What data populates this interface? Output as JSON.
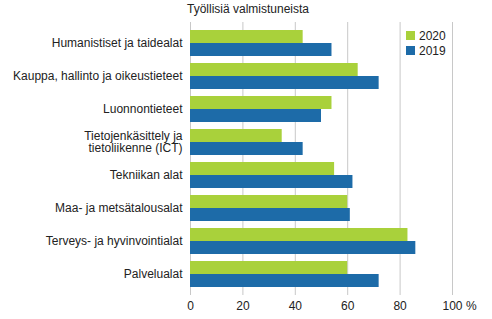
{
  "chart_data": {
    "type": "bar",
    "orientation": "horizontal",
    "title": "Työllisiä valmistuneista",
    "xlabel": "%",
    "categories": [
      "Humanistiset ja taidealat",
      "Kauppa, hallinto ja oikeustieteet",
      "Luonnontieteet",
      "Tietojenkäsittely ja tietoliikenne (ICT)",
      "Tekniikan alat",
      "Maa- ja metsätalousalat",
      "Terveys- ja hyvinvointialat",
      "Palvelualat"
    ],
    "series": [
      {
        "name": "2020",
        "color": "#a9d13b",
        "values": [
          43,
          64,
          54,
          35,
          55,
          60,
          83,
          60
        ]
      },
      {
        "name": "2019",
        "color": "#1d6ba8",
        "values": [
          54,
          72,
          50,
          43,
          62,
          61,
          86,
          72
        ]
      }
    ],
    "xlim": [
      0,
      100
    ],
    "xticks": [
      0,
      20,
      40,
      60,
      80,
      100
    ],
    "grid": true,
    "legend": "top-right"
  }
}
